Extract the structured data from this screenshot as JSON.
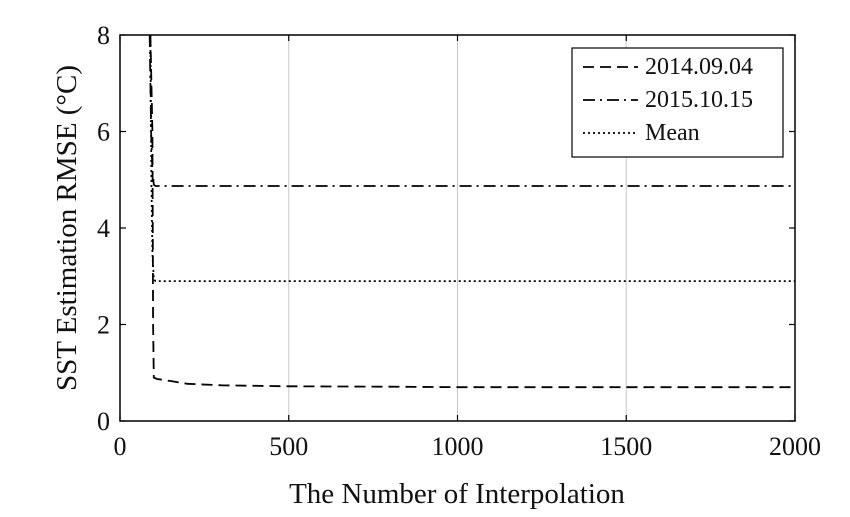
{
  "chart_data": {
    "type": "line",
    "title": "",
    "xlabel": "The Number of Interpolation",
    "ylabel": "SST Estimation RMSE (°C)",
    "xlim": [
      0,
      2000
    ],
    "ylim": [
      0,
      8
    ],
    "xticks": [
      0,
      500,
      1000,
      1500,
      2000
    ],
    "yticks": [
      0,
      2,
      4,
      6,
      8
    ],
    "grid": "vertical",
    "legend_position": "top-right",
    "series": [
      {
        "name": "2014.09.04",
        "style": "dashed",
        "color": "#000000",
        "x": [
          90,
          96,
          98,
          100,
          110,
          150,
          200,
          300,
          500,
          800,
          1000,
          1500,
          2000
        ],
        "y": [
          8,
          6,
          2,
          0.9,
          0.87,
          0.83,
          0.77,
          0.74,
          0.72,
          0.71,
          0.7,
          0.7,
          0.7
        ]
      },
      {
        "name": "2015.10.15",
        "style": "dashdot",
        "color": "#000000",
        "x": [
          88,
          92,
          96,
          100,
          105,
          200,
          500,
          1000,
          1500,
          2000
        ],
        "y": [
          8,
          6,
          5.2,
          4.9,
          4.87,
          4.87,
          4.87,
          4.87,
          4.87,
          4.87
        ]
      },
      {
        "name": "Mean",
        "style": "dotted",
        "color": "#000000",
        "x": [
          90,
          93,
          96,
          100,
          105,
          200,
          500,
          1000,
          1500,
          2000
        ],
        "y": [
          8,
          5,
          3.5,
          2.95,
          2.9,
          2.9,
          2.9,
          2.9,
          2.9,
          2.9
        ]
      }
    ]
  }
}
